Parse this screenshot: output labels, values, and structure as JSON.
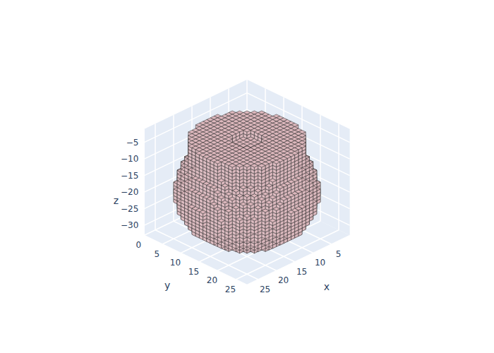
{
  "chart_data": {
    "type": "voxel3d",
    "x_label": "x",
    "y_label": "y",
    "z_label": "z",
    "xlim": [
      0,
      28
    ],
    "ylim": [
      0,
      28
    ],
    "zlim": [
      -33,
      -1
    ],
    "xticks": [
      5,
      10,
      15,
      20,
      25
    ],
    "yticks": [
      0,
      5,
      10,
      15,
      20,
      25
    ],
    "zticks": [
      {
        "value": -30,
        "label": "−30"
      },
      {
        "value": -25,
        "label": "−25"
      },
      {
        "value": -20,
        "label": "−20"
      },
      {
        "value": -15,
        "label": "−15"
      },
      {
        "value": -10,
        "label": "−10"
      },
      {
        "value": -5,
        "label": "−5"
      }
    ],
    "grid": true,
    "color": "#d8b4b9",
    "center": [
      14,
      14
    ],
    "z_levels": [
      -32,
      -31,
      -30,
      -29,
      -28,
      -27,
      -26,
      -25,
      -24,
      -23,
      -22,
      -21,
      -20,
      -19,
      -18,
      -17,
      -16,
      -15,
      -14,
      -13,
      -12,
      -11,
      -10,
      -9,
      -8,
      -7,
      -6,
      -5
    ],
    "radii": [
      8,
      9.5,
      10.5,
      11.2,
      11.8,
      12.3,
      12.7,
      13,
      13.3,
      13.5,
      13.6,
      13.7,
      13.7,
      13.6,
      13.5,
      13.3,
      13.1,
      12.8,
      12.5,
      12.2,
      11.8,
      11.5,
      11.2,
      11,
      11,
      11,
      11,
      11
    ],
    "opening_radius": 3,
    "opening_levels": [
      -6,
      -5
    ]
  }
}
